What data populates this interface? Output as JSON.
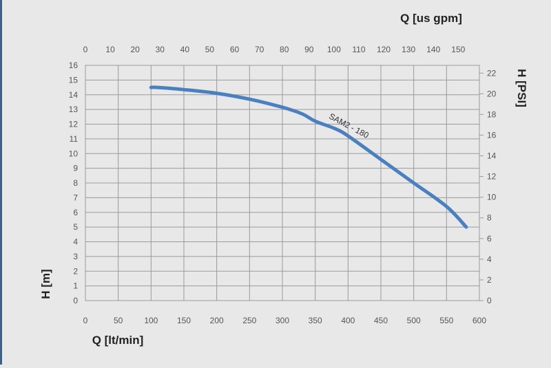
{
  "chart_data": {
    "type": "line",
    "title": "",
    "x_bottom": {
      "label": "Q [lt/min]",
      "range": [
        0,
        600
      ],
      "ticks": [
        0,
        50,
        100,
        150,
        200,
        250,
        300,
        350,
        400,
        450,
        500,
        550,
        600
      ]
    },
    "x_top": {
      "label": "Q [us gpm]",
      "range": [
        0,
        158.5
      ],
      "ticks": [
        0,
        10,
        20,
        30,
        40,
        50,
        60,
        70,
        80,
        90,
        100,
        110,
        120,
        130,
        140,
        150
      ]
    },
    "y_left": {
      "label": "H [m]",
      "range": [
        0,
        16
      ],
      "ticks": [
        0,
        1,
        2,
        3,
        4,
        5,
        6,
        7,
        8,
        9,
        10,
        11,
        12,
        13,
        14,
        15,
        16
      ]
    },
    "y_right": {
      "label": "H [PSI]",
      "range": [
        0,
        22.75
      ],
      "ticks": [
        0,
        2,
        4,
        6,
        8,
        10,
        12,
        14,
        16,
        18,
        20,
        22
      ]
    },
    "grid": true,
    "series": [
      {
        "name": "SAM2 - 180",
        "color": "#4a7fc0",
        "x": [
          100,
          110,
          150,
          200,
          250,
          300,
          330,
          350,
          380,
          400,
          450,
          500,
          550,
          580
        ],
        "y": [
          14.5,
          14.5,
          14.35,
          14.1,
          13.7,
          13.15,
          12.7,
          12.2,
          11.7,
          11.2,
          9.6,
          8.0,
          6.4,
          5.0
        ]
      }
    ]
  }
}
